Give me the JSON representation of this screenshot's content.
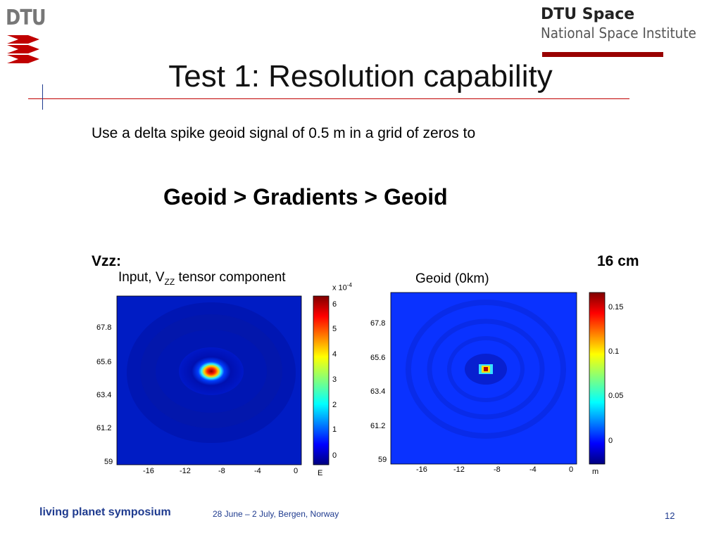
{
  "header": {
    "logo_text": "DTU",
    "org_name": "DTU Space",
    "org_sub": "National Space Institute"
  },
  "slide": {
    "title": "Test 1: Resolution capability",
    "subtitle": "Use a delta spike geoid signal of 0.5 m in a grid of zeros to",
    "flow": "Geoid > Gradients > Geoid",
    "left_label": "Vzz:",
    "right_label": "16 cm"
  },
  "plots": [
    {
      "title_pre": "Input, V",
      "title_sub": "ZZ",
      "title_post": " tensor component",
      "y_ticks": [
        "67.8",
        "65.6",
        "63.4",
        "61.2",
        "59"
      ],
      "x_ticks": [
        "-16",
        "-12",
        "-8",
        "-4",
        "0"
      ],
      "colorbar_ticks": [
        "6",
        "5",
        "4",
        "3",
        "2",
        "1",
        "0"
      ],
      "colorbar_exponent": "x 10",
      "colorbar_exponent_power": "-4",
      "colorbar_unit": "E"
    },
    {
      "title": "Geoid (0km)",
      "y_ticks": [
        "67.8",
        "65.6",
        "63.4",
        "61.2",
        "59"
      ],
      "x_ticks": [
        "-16",
        "-12",
        "-8",
        "-4",
        "0"
      ],
      "colorbar_ticks": [
        "0.15",
        "0.1",
        "0.05",
        "0"
      ],
      "colorbar_unit": "m"
    }
  ],
  "footer": {
    "event": "living planet symposium",
    "dates": "28 June – 2 July, Bergen, Norway",
    "page": "12"
  },
  "colors": {
    "accent_red": "#990000",
    "footer_blue": "#1f3b8f"
  }
}
